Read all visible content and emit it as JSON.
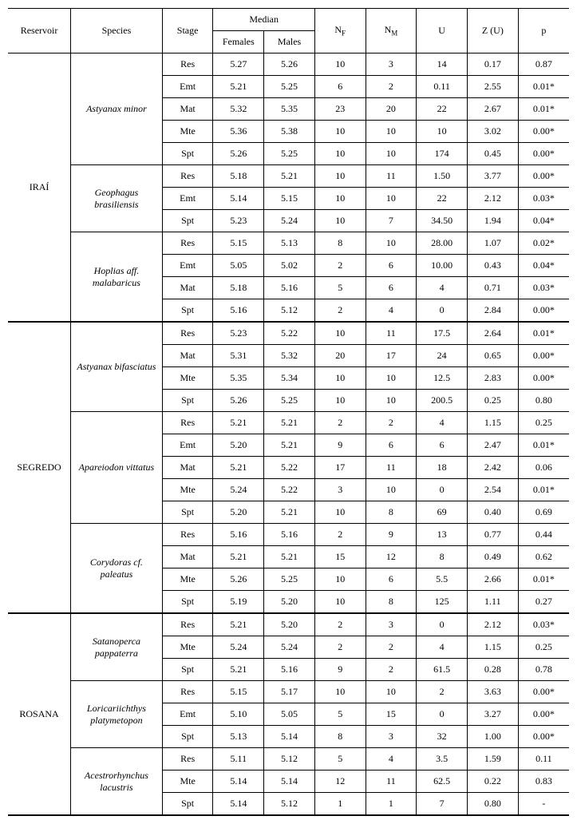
{
  "header": {
    "reservoir": "Reservoir",
    "species": "Species",
    "stage": "Stage",
    "median": "Median",
    "females": "Females",
    "males": "Males",
    "nf_pre": "N",
    "nf_sub": "F",
    "nm_pre": "N",
    "nm_sub": "M",
    "u": "U",
    "zu": "Z (U)",
    "p": "p"
  },
  "reservoirs": [
    {
      "name": "IRAÍ",
      "species": [
        {
          "name": "Astyanax minor",
          "rows": [
            {
              "stage": "Res",
              "f": "5.27",
              "m": "5.26",
              "nf": "10",
              "nm": "3",
              "u": "14",
              "zu": "0.17",
              "p": "0.87"
            },
            {
              "stage": "Emt",
              "f": "5.21",
              "m": "5.25",
              "nf": "6",
              "nm": "2",
              "u": "0.11",
              "zu": "2.55",
              "p": "0.01*"
            },
            {
              "stage": "Mat",
              "f": "5.32",
              "m": "5.35",
              "nf": "23",
              "nm": "20",
              "u": "22",
              "zu": "2.67",
              "p": "0.01*"
            },
            {
              "stage": "Mte",
              "f": "5.36",
              "m": "5.38",
              "nf": "10",
              "nm": "10",
              "u": "10",
              "zu": "3.02",
              "p": "0.00*"
            },
            {
              "stage": "Spt",
              "f": "5.26",
              "m": "5.25",
              "nf": "10",
              "nm": "10",
              "u": "174",
              "zu": "0.45",
              "p": "0.00*"
            }
          ]
        },
        {
          "name": "Geophagus brasiliensis",
          "rows": [
            {
              "stage": "Res",
              "f": "5.18",
              "m": "5.21",
              "nf": "10",
              "nm": "11",
              "u": "1.50",
              "zu": "3.77",
              "p": "0.00*"
            },
            {
              "stage": "Emt",
              "f": "5.14",
              "m": "5.15",
              "nf": "10",
              "nm": "10",
              "u": "22",
              "zu": "2.12",
              "p": "0.03*"
            },
            {
              "stage": "Spt",
              "f": "5.23",
              "m": "5.24",
              "nf": "10",
              "nm": "7",
              "u": "34.50",
              "zu": "1.94",
              "p": "0.04*"
            }
          ]
        },
        {
          "name": "Hoplias aff. malabaricus",
          "rows": [
            {
              "stage": "Res",
              "f": "5.15",
              "m": "5.13",
              "nf": "8",
              "nm": "10",
              "u": "28.00",
              "zu": "1.07",
              "p": "0.02*"
            },
            {
              "stage": "Emt",
              "f": "5.05",
              "m": "5.02",
              "nf": "2",
              "nm": "6",
              "u": "10.00",
              "zu": "0.43",
              "p": "0.04*"
            },
            {
              "stage": "Mat",
              "f": "5.18",
              "m": "5.16",
              "nf": "5",
              "nm": "6",
              "u": "4",
              "zu": "0.71",
              "p": "0.03*"
            },
            {
              "stage": "Spt",
              "f": "5.16",
              "m": "5.12",
              "nf": "2",
              "nm": "4",
              "u": "0",
              "zu": "2.84",
              "p": "0.00*"
            }
          ]
        }
      ]
    },
    {
      "name": "SEGREDO",
      "species": [
        {
          "name": "Astyanax bifasciatus",
          "rows": [
            {
              "stage": "Res",
              "f": "5.23",
              "m": "5.22",
              "nf": "10",
              "nm": "11",
              "u": "17.5",
              "zu": "2.64",
              "p": "0.01*"
            },
            {
              "stage": "Mat",
              "f": "5.31",
              "m": "5.32",
              "nf": "20",
              "nm": "17",
              "u": "24",
              "zu": "0.65",
              "p": "0.00*"
            },
            {
              "stage": "Mte",
              "f": "5.35",
              "m": "5.34",
              "nf": "10",
              "nm": "10",
              "u": "12.5",
              "zu": "2.83",
              "p": "0.00*"
            },
            {
              "stage": "Spt",
              "f": "5.26",
              "m": "5.25",
              "nf": "10",
              "nm": "10",
              "u": "200.5",
              "zu": "0.25",
              "p": "0.80"
            }
          ]
        },
        {
          "name": "Apareiodon vittatus",
          "rows": [
            {
              "stage": "Res",
              "f": "5.21",
              "m": "5.21",
              "nf": "2",
              "nm": "2",
              "u": "4",
              "zu": "1.15",
              "p": "0.25"
            },
            {
              "stage": "Emt",
              "f": "5.20",
              "m": "5.21",
              "nf": "9",
              "nm": "6",
              "u": "6",
              "zu": "2.47",
              "p": "0.01*"
            },
            {
              "stage": "Mat",
              "f": "5.21",
              "m": "5.22",
              "nf": "17",
              "nm": "11",
              "u": "18",
              "zu": "2.42",
              "p": "0.06"
            },
            {
              "stage": "Mte",
              "f": "5.24",
              "m": "5.22",
              "nf": "3",
              "nm": "10",
              "u": "0",
              "zu": "2.54",
              "p": "0.01*"
            },
            {
              "stage": "Spt",
              "f": "5.20",
              "m": "5.21",
              "nf": "10",
              "nm": "8",
              "u": "69",
              "zu": "0.40",
              "p": "0.69"
            }
          ]
        },
        {
          "name": "Corydoras cf. paleatus",
          "rows": [
            {
              "stage": "Res",
              "f": "5.16",
              "m": "5.16",
              "nf": "2",
              "nm": "9",
              "u": "13",
              "zu": "0.77",
              "p": "0.44"
            },
            {
              "stage": "Mat",
              "f": "5.21",
              "m": "5.21",
              "nf": "15",
              "nm": "12",
              "u": "8",
              "zu": "0.49",
              "p": "0.62"
            },
            {
              "stage": "Mte",
              "f": "5.26",
              "m": "5.25",
              "nf": "10",
              "nm": "6",
              "u": "5.5",
              "zu": "2.66",
              "p": "0.01*"
            },
            {
              "stage": "Spt",
              "f": "5.19",
              "m": "5.20",
              "nf": "10",
              "nm": "8",
              "u": "125",
              "zu": "1.11",
              "p": "0.27"
            }
          ]
        }
      ]
    },
    {
      "name": "ROSANA",
      "species": [
        {
          "name": "Satanoperca pappaterra",
          "rows": [
            {
              "stage": "Res",
              "f": "5.21",
              "m": "5.20",
              "nf": "2",
              "nm": "3",
              "u": "0",
              "zu": "2.12",
              "p": "0.03*"
            },
            {
              "stage": "Mte",
              "f": "5.24",
              "m": "5.24",
              "nf": "2",
              "nm": "2",
              "u": "4",
              "zu": "1.15",
              "p": "0.25"
            },
            {
              "stage": "Spt",
              "f": "5.21",
              "m": "5.16",
              "nf": "9",
              "nm": "2",
              "u": "61.5",
              "zu": "0.28",
              "p": "0.78"
            }
          ]
        },
        {
          "name": "Loricariichthys platymetopon",
          "rows": [
            {
              "stage": "Res",
              "f": "5.15",
              "m": "5.17",
              "nf": "10",
              "nm": "10",
              "u": "2",
              "zu": "3.63",
              "p": "0.00*"
            },
            {
              "stage": "Emt",
              "f": "5.10",
              "m": "5.05",
              "nf": "5",
              "nm": "15",
              "u": "0",
              "zu": "3.27",
              "p": "0.00*"
            },
            {
              "stage": "Spt",
              "f": "5.13",
              "m": "5.14",
              "nf": "8",
              "nm": "3",
              "u": "32",
              "zu": "1.00",
              "p": "0.00*"
            }
          ]
        },
        {
          "name": "Acestrorhynchus lacustris",
          "rows": [
            {
              "stage": "Res",
              "f": "5.11",
              "m": "5.12",
              "nf": "5",
              "nm": "4",
              "u": "3.5",
              "zu": "1.59",
              "p": "0.11"
            },
            {
              "stage": "Mte",
              "f": "5.14",
              "m": "5.14",
              "nf": "12",
              "nm": "11",
              "u": "62.5",
              "zu": "0.22",
              "p": "0.83"
            },
            {
              "stage": "Spt",
              "f": "5.14",
              "m": "5.12",
              "nf": "1",
              "nm": "1",
              "u": "7",
              "zu": "0.80",
              "p": "-"
            }
          ]
        }
      ]
    }
  ]
}
